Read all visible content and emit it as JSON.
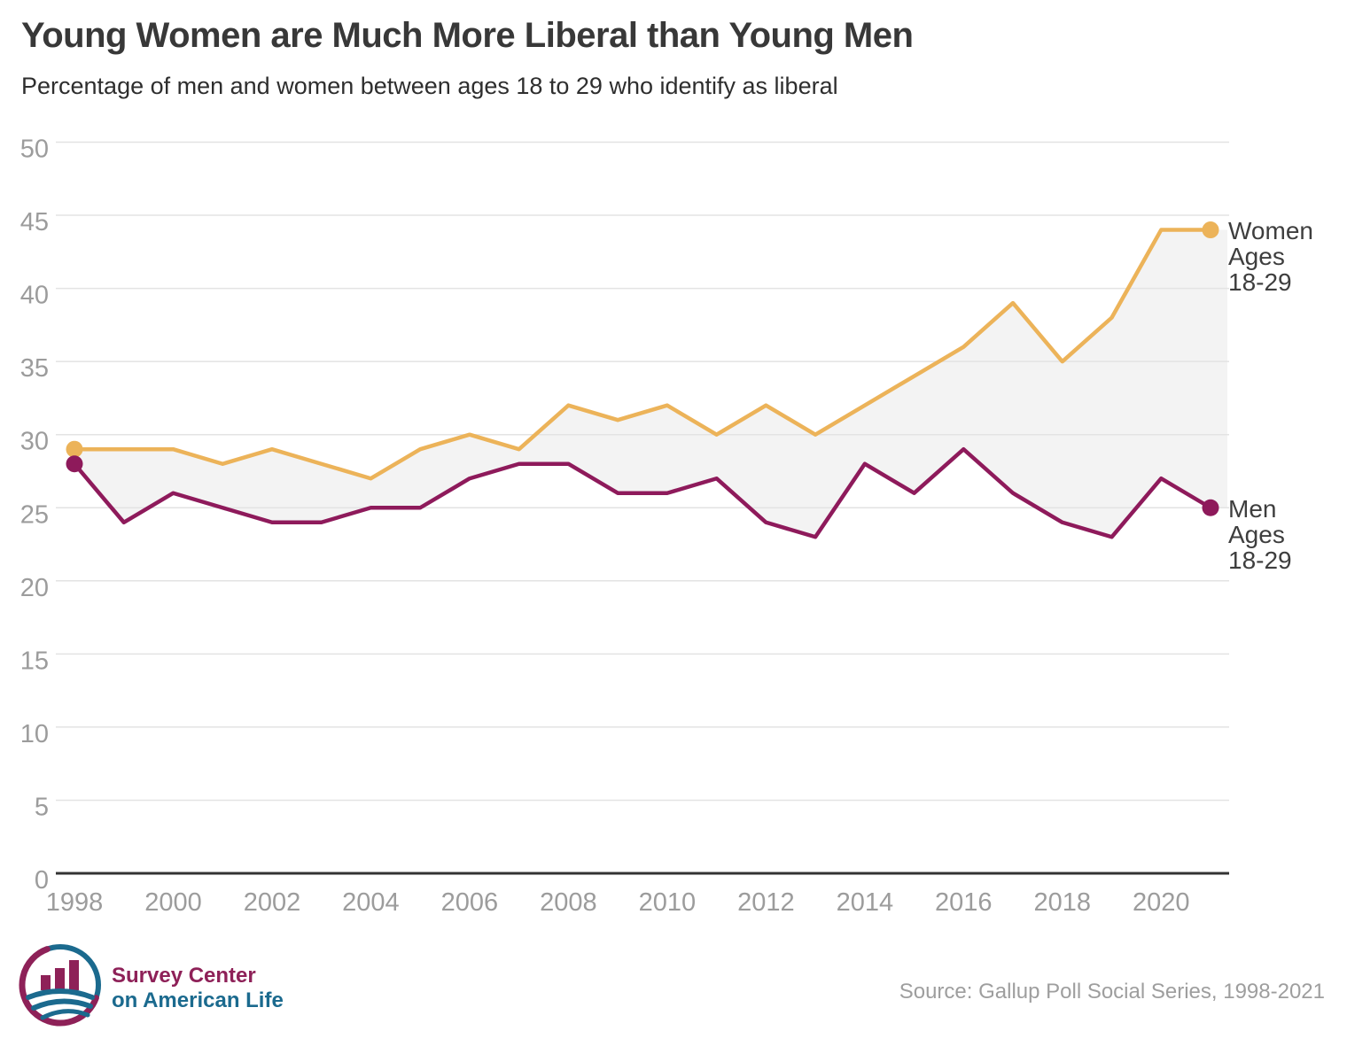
{
  "chart_data": {
    "type": "line",
    "title": "Young Women are Much More Liberal than Young Men",
    "subtitle": "Percentage of men and women between ages 18 to 29 who identify as liberal",
    "x": [
      1998,
      1999,
      2000,
      2001,
      2002,
      2003,
      2004,
      2005,
      2006,
      2007,
      2008,
      2009,
      2010,
      2011,
      2012,
      2013,
      2014,
      2015,
      2016,
      2017,
      2018,
      2019,
      2020,
      2021
    ],
    "xticks": [
      1998,
      2000,
      2002,
      2004,
      2006,
      2008,
      2010,
      2012,
      2014,
      2016,
      2018,
      2020
    ],
    "ylim": [
      0,
      50
    ],
    "ytick_step": 5,
    "grid": true,
    "legend_position": "right-end-of-lines",
    "area_between_series": true,
    "series": [
      {
        "key": "women",
        "name": "Women Ages 18-29",
        "label": "Women\nAges\n18-29",
        "color": "#ECB359",
        "endpoint_dots": true,
        "values": [
          29,
          29,
          29,
          28,
          29,
          28,
          27,
          29,
          30,
          29,
          32,
          31,
          32,
          30,
          32,
          30,
          32,
          34,
          36,
          39,
          35,
          38,
          44,
          44
        ]
      },
      {
        "key": "men",
        "name": "Men Ages 18-29",
        "label": "Men\nAges\n18-29",
        "color": "#8E1A5B",
        "endpoint_dots": true,
        "values": [
          28,
          24,
          26,
          25,
          24,
          24,
          25,
          25,
          27,
          28,
          28,
          26,
          26,
          27,
          24,
          23,
          28,
          26,
          29,
          26,
          24,
          23,
          27,
          25
        ]
      }
    ],
    "colors": {
      "area": "#F3F3F3",
      "grid": "#E3E3E3",
      "axis": "#333333",
      "tick_labels": "#9C9C9C",
      "series_labels": "#3E3E3E"
    }
  },
  "footer": {
    "logo": {
      "line1": "Survey Center",
      "line2": "on American Life",
      "maroon": "#8E2158",
      "teal": "#1B6A8E"
    },
    "source": "Source: Gallup Poll Social Series, 1998-2021"
  }
}
